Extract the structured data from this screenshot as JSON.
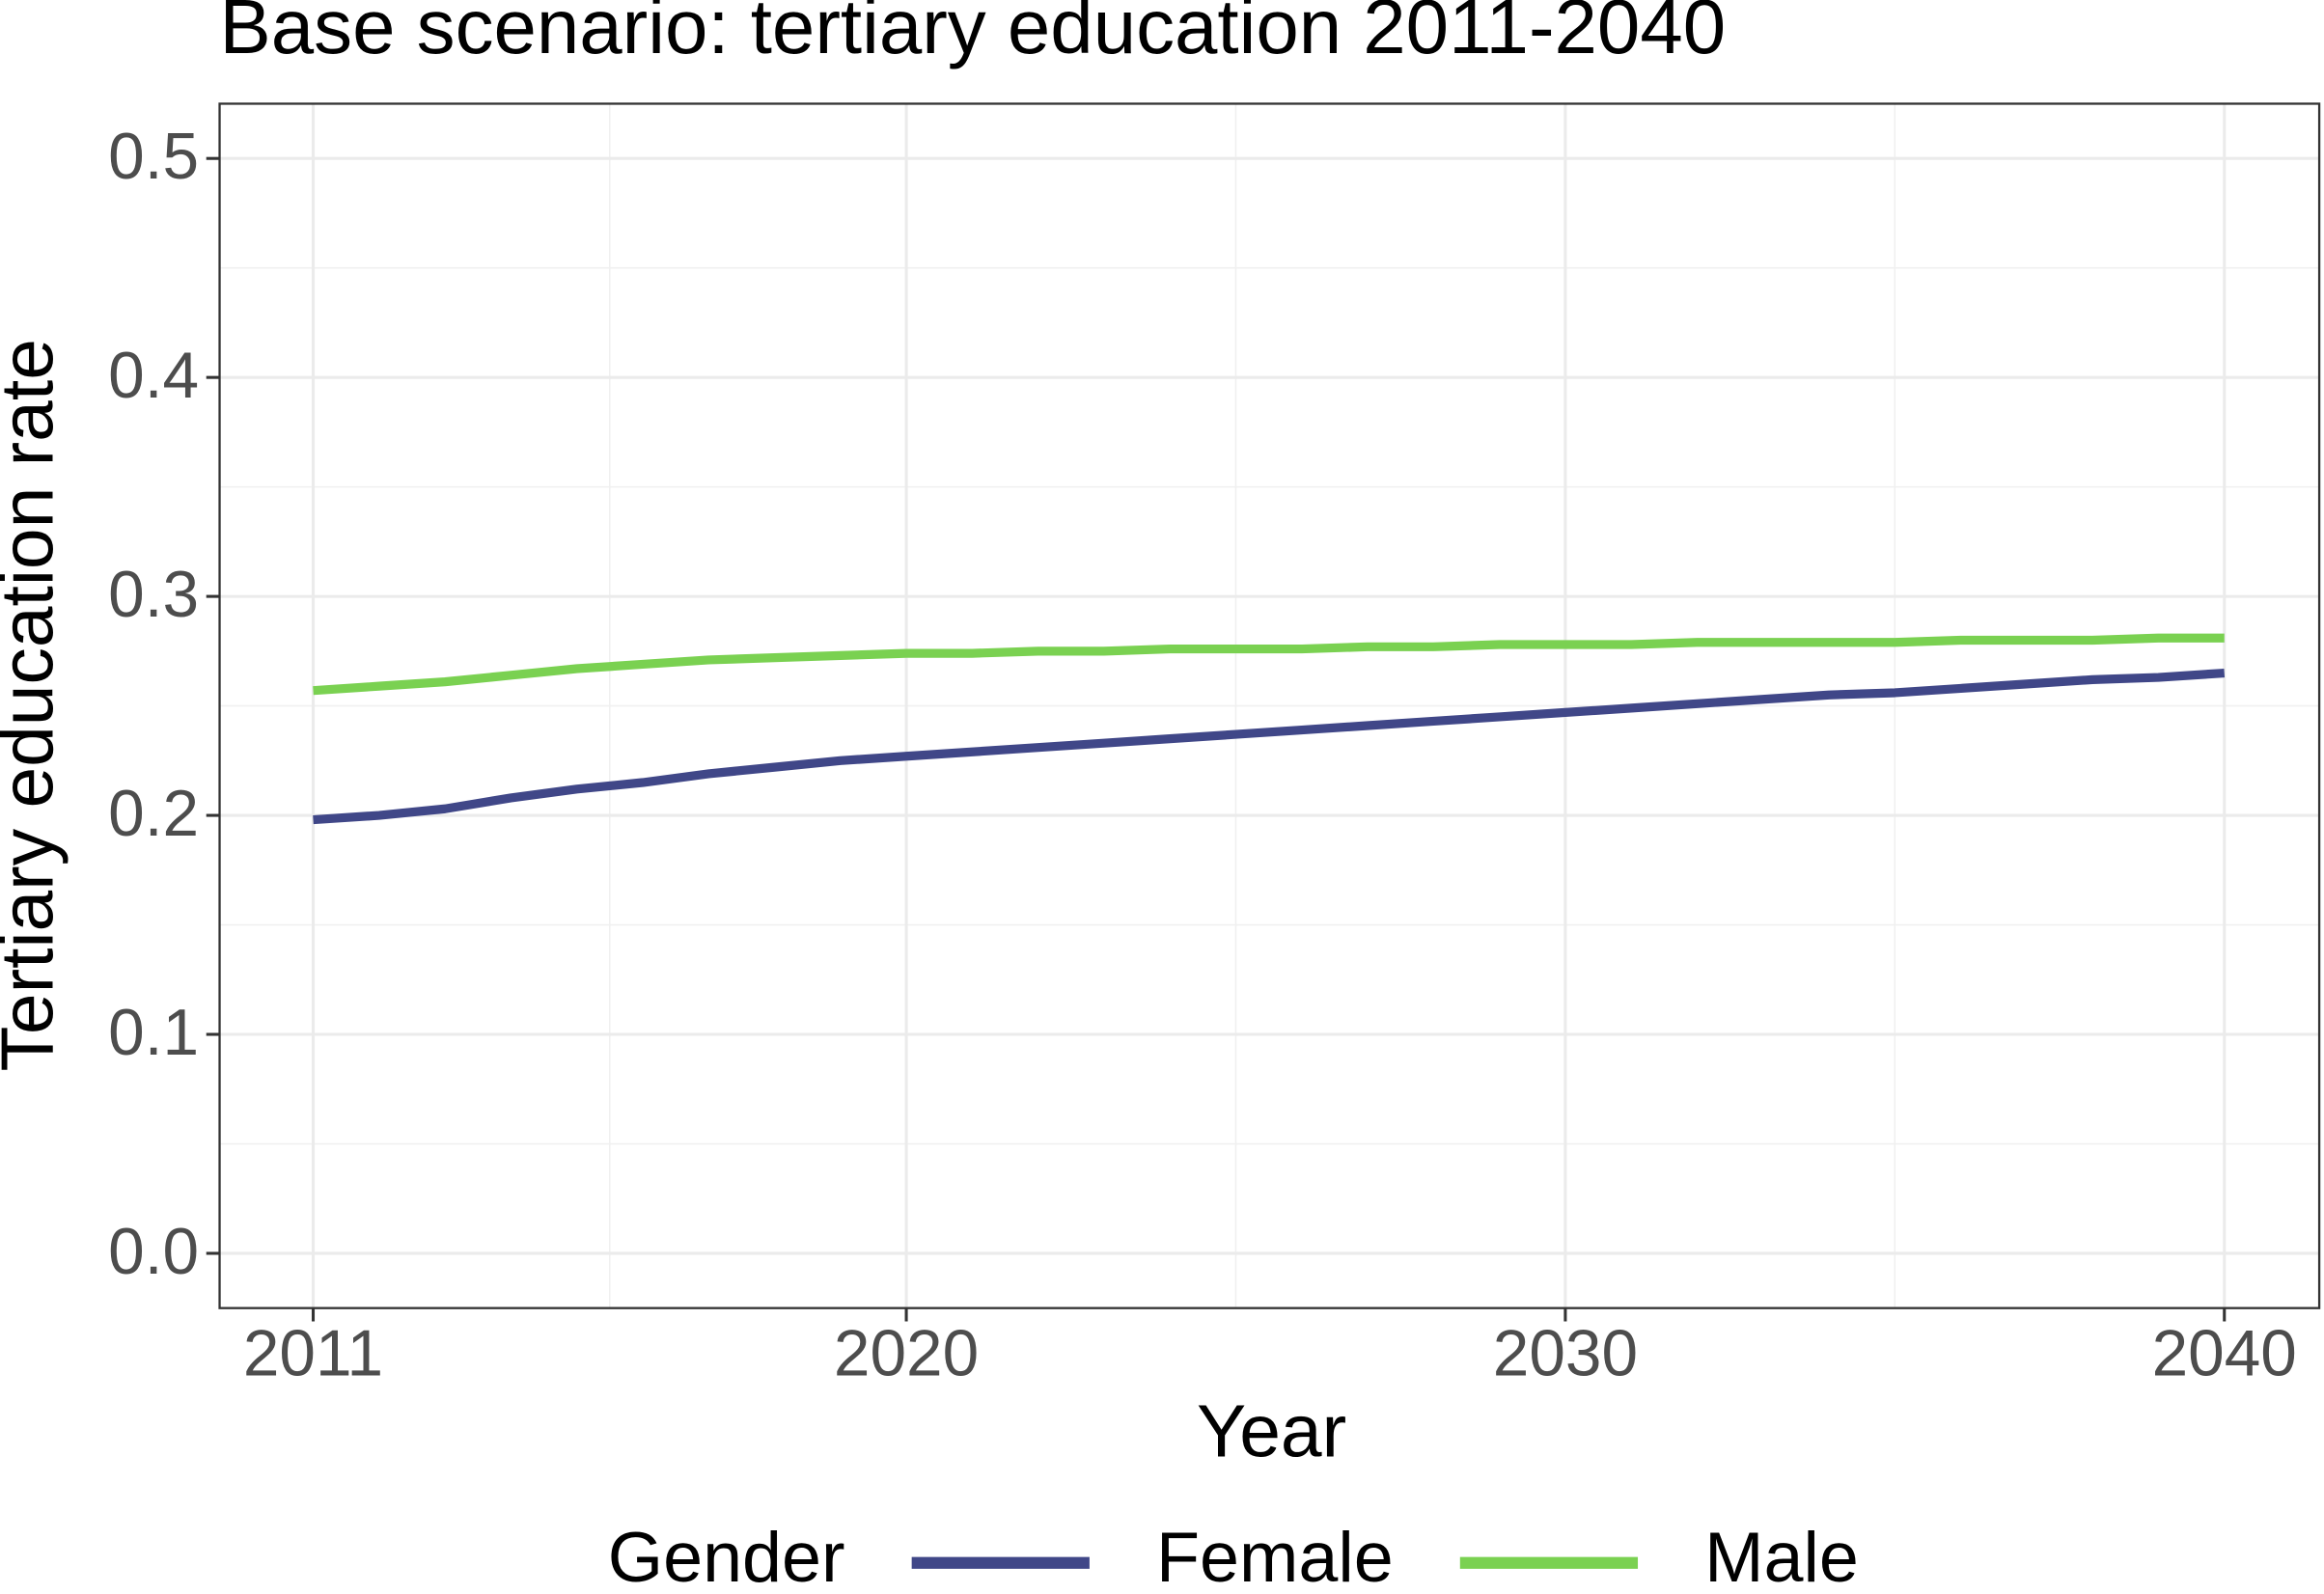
{
  "chart_data": {
    "type": "line",
    "title": "Base scenario: tertiary education 2011-2040",
    "x_label": "Year",
    "y_label": "Tertiary education rate",
    "legend_title": "Gender",
    "legend_position": "bottom",
    "grid": true,
    "x": [
      2011,
      2012,
      2013,
      2014,
      2015,
      2016,
      2017,
      2018,
      2019,
      2020,
      2021,
      2022,
      2023,
      2024,
      2025,
      2026,
      2027,
      2028,
      2029,
      2030,
      2031,
      2032,
      2033,
      2034,
      2035,
      2036,
      2037,
      2038,
      2039,
      2040
    ],
    "series": [
      {
        "name": "Female",
        "color": "#404788",
        "values": [
          0.198,
          0.2,
          0.203,
          0.208,
          0.212,
          0.215,
          0.219,
          0.222,
          0.225,
          0.227,
          0.229,
          0.231,
          0.233,
          0.235,
          0.237,
          0.239,
          0.241,
          0.243,
          0.245,
          0.247,
          0.249,
          0.251,
          0.253,
          0.255,
          0.256,
          0.258,
          0.26,
          0.262,
          0.263,
          0.265
        ]
      },
      {
        "name": "Male",
        "color": "#7ad151",
        "values": [
          0.257,
          0.259,
          0.261,
          0.264,
          0.267,
          0.269,
          0.271,
          0.272,
          0.273,
          0.274,
          0.274,
          0.275,
          0.275,
          0.276,
          0.276,
          0.276,
          0.277,
          0.277,
          0.278,
          0.278,
          0.278,
          0.279,
          0.279,
          0.279,
          0.279,
          0.28,
          0.28,
          0.28,
          0.281,
          0.281
        ]
      }
    ],
    "xlim": [
      2009.58,
      2041.44
    ],
    "xticks": [
      2011,
      2020,
      2030,
      2040
    ],
    "ylim": [
      -0.025,
      0.525
    ],
    "yticks": [
      {
        "value": 0,
        "label": "0.0"
      },
      0.1,
      0.2,
      0.3,
      0.4,
      0.5
    ]
  }
}
